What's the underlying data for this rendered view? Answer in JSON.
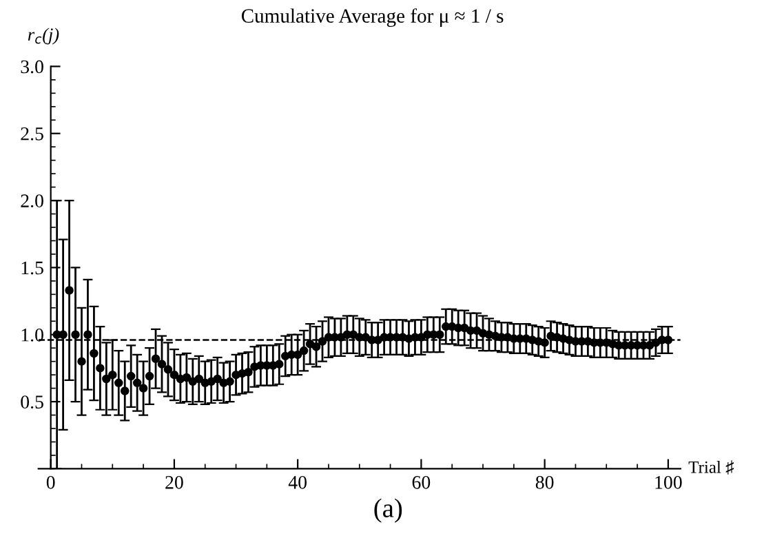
{
  "chart_data": {
    "type": "scatter",
    "title": "Cumulative Average for μ ≈ 1 / s",
    "xlabel": "Trial ♯",
    "ylabel": "r$_{c}$(j)",
    "annotations": [
      "(a)"
    ],
    "x": [
      1,
      2,
      3,
      4,
      5,
      6,
      7,
      8,
      9,
      10,
      11,
      12,
      13,
      14,
      15,
      16,
      17,
      18,
      19,
      20,
      21,
      22,
      23,
      24,
      25,
      26,
      27,
      28,
      29,
      30,
      31,
      32,
      33,
      34,
      35,
      36,
      37,
      38,
      39,
      40,
      41,
      42,
      43,
      44,
      45,
      46,
      47,
      48,
      49,
      50,
      51,
      52,
      53,
      54,
      55,
      56,
      57,
      58,
      59,
      60,
      61,
      62,
      63,
      64,
      65,
      66,
      67,
      68,
      69,
      70,
      71,
      72,
      73,
      74,
      75,
      76,
      77,
      78,
      79,
      80,
      81,
      82,
      83,
      84,
      85,
      86,
      87,
      88,
      89,
      90,
      91,
      92,
      93,
      94,
      95,
      96,
      97,
      98,
      99,
      100
    ],
    "series": [
      {
        "color": "#000000",
        "values": [
          1.0,
          1.0,
          1.33,
          1.0,
          0.8,
          1.0,
          0.86,
          0.75,
          0.67,
          0.7,
          0.64,
          0.58,
          0.69,
          0.64,
          0.6,
          0.69,
          0.82,
          0.78,
          0.74,
          0.7,
          0.67,
          0.68,
          0.65,
          0.67,
          0.64,
          0.65,
          0.67,
          0.64,
          0.65,
          0.7,
          0.71,
          0.72,
          0.76,
          0.77,
          0.77,
          0.77,
          0.78,
          0.84,
          0.85,
          0.85,
          0.88,
          0.93,
          0.91,
          0.95,
          0.98,
          0.98,
          0.98,
          1.0,
          1.0,
          0.98,
          0.98,
          0.96,
          0.96,
          0.98,
          0.98,
          0.98,
          0.98,
          0.97,
          0.98,
          0.98,
          1.0,
          1.0,
          1.0,
          1.06,
          1.06,
          1.05,
          1.05,
          1.03,
          1.03,
          1.01,
          1.0,
          0.99,
          0.98,
          0.98,
          0.97,
          0.97,
          0.97,
          0.96,
          0.95,
          0.94,
          0.99,
          0.98,
          0.97,
          0.96,
          0.95,
          0.95,
          0.95,
          0.94,
          0.94,
          0.94,
          0.93,
          0.92,
          0.92,
          0.92,
          0.92,
          0.92,
          0.92,
          0.94,
          0.96,
          0.96
        ],
        "errors": [
          1.0,
          0.71,
          0.67,
          0.5,
          0.4,
          0.41,
          0.35,
          0.31,
          0.27,
          0.26,
          0.24,
          0.22,
          0.23,
          0.21,
          0.2,
          0.21,
          0.22,
          0.21,
          0.2,
          0.19,
          0.18,
          0.18,
          0.17,
          0.17,
          0.16,
          0.16,
          0.16,
          0.15,
          0.15,
          0.15,
          0.15,
          0.15,
          0.15,
          0.15,
          0.15,
          0.15,
          0.15,
          0.15,
          0.15,
          0.15,
          0.15,
          0.15,
          0.15,
          0.15,
          0.15,
          0.14,
          0.14,
          0.14,
          0.14,
          0.14,
          0.13,
          0.13,
          0.13,
          0.13,
          0.13,
          0.13,
          0.13,
          0.13,
          0.13,
          0.13,
          0.13,
          0.13,
          0.13,
          0.13,
          0.13,
          0.13,
          0.13,
          0.13,
          0.13,
          0.13,
          0.12,
          0.11,
          0.11,
          0.11,
          0.11,
          0.11,
          0.11,
          0.11,
          0.11,
          0.11,
          0.11,
          0.11,
          0.11,
          0.11,
          0.11,
          0.11,
          0.11,
          0.11,
          0.11,
          0.11,
          0.1,
          0.1,
          0.1,
          0.1,
          0.1,
          0.1,
          0.1,
          0.1,
          0.1,
          0.1
        ]
      }
    ],
    "xlim": [
      -2,
      102
    ],
    "ylim": [
      0,
      3.0
    ],
    "xticks": [
      0,
      20,
      40,
      60,
      80,
      100
    ],
    "yticks": [
      {
        "value": 0.5,
        "label": "0.5"
      },
      {
        "value": 1.0,
        "label": "1.0"
      },
      {
        "value": 1.5,
        "label": "1.5"
      },
      {
        "value": 2.0,
        "label": "2.0"
      },
      {
        "value": 2.5,
        "label": "2.5"
      },
      {
        "value": 3.0,
        "label": "3.0"
      }
    ],
    "ref_lines": [
      {
        "axis": "y",
        "value": 0.96,
        "line_style": "dashed",
        "color": "#000000"
      }
    ],
    "marker": "circle",
    "grid": false,
    "legend": false
  }
}
